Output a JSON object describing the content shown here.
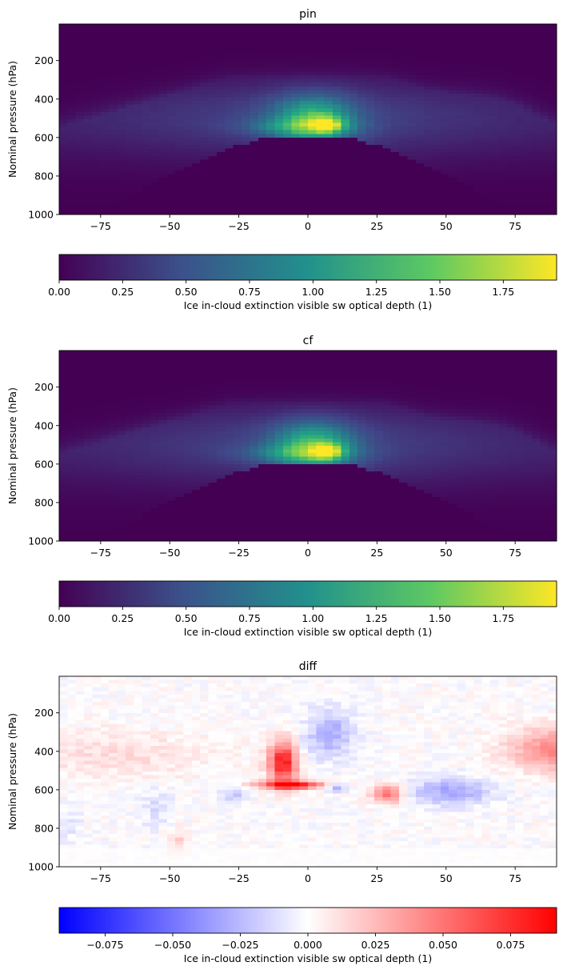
{
  "chart_data": [
    {
      "type": "heatmap",
      "title": "pin",
      "xlabel": "",
      "ylabel": "Nominal pressure (hPa)",
      "xlim": [
        -90,
        90
      ],
      "ylim": [
        1000,
        10
      ],
      "y_inverted": true,
      "xticks": [
        -75,
        -50,
        -25,
        0,
        25,
        50,
        75
      ],
      "yticks": [
        200,
        400,
        600,
        800,
        1000
      ],
      "colormap": "viridis",
      "colors": [
        "#440154",
        "#3b528b",
        "#21918c",
        "#5ec962",
        "#fde725"
      ],
      "colorbar": {
        "label": "Ice in-cloud extinction visible sw optical depth (1)",
        "range": [
          0,
          1.96
        ],
        "ticks": [
          "0.00",
          "0.25",
          "0.50",
          "0.75",
          "1.00",
          "1.25",
          "1.50",
          "1.75"
        ]
      },
      "grid": false
    },
    {
      "type": "heatmap",
      "title": "cf",
      "xlabel": "",
      "ylabel": "Nominal pressure (hPa)",
      "xlim": [
        -90,
        90
      ],
      "ylim": [
        1000,
        10
      ],
      "y_inverted": true,
      "xticks": [
        -75,
        -50,
        -25,
        0,
        25,
        50,
        75
      ],
      "yticks": [
        200,
        400,
        600,
        800,
        1000
      ],
      "colormap": "viridis",
      "colors": [
        "#440154",
        "#3b528b",
        "#21918c",
        "#5ec962",
        "#fde725"
      ],
      "colorbar": {
        "label": "Ice in-cloud extinction visible sw optical depth (1)",
        "range": [
          0,
          1.96
        ],
        "ticks": [
          "0.00",
          "0.25",
          "0.50",
          "0.75",
          "1.00",
          "1.25",
          "1.50",
          "1.75"
        ]
      },
      "grid": false
    },
    {
      "type": "heatmap",
      "title": "diff",
      "xlabel": "",
      "ylabel": "Nominal pressure (hPa)",
      "xlim": [
        -90,
        90
      ],
      "ylim": [
        1000,
        10
      ],
      "y_inverted": true,
      "xticks": [
        -75,
        -50,
        -25,
        0,
        25,
        50,
        75
      ],
      "yticks": [
        200,
        400,
        600,
        800,
        1000
      ],
      "colormap": "bwr",
      "colors": [
        "#0000ff",
        "#ffffff",
        "#ff0000"
      ],
      "colorbar": {
        "label": "Ice in-cloud extinction visible sw optical depth (1)",
        "range": [
          -0.092,
          0.092
        ],
        "ticks": [
          "−0.075",
          "−0.050",
          "−0.025",
          "0.000",
          "0.025",
          "0.050",
          "0.075"
        ]
      },
      "grid": false
    }
  ]
}
